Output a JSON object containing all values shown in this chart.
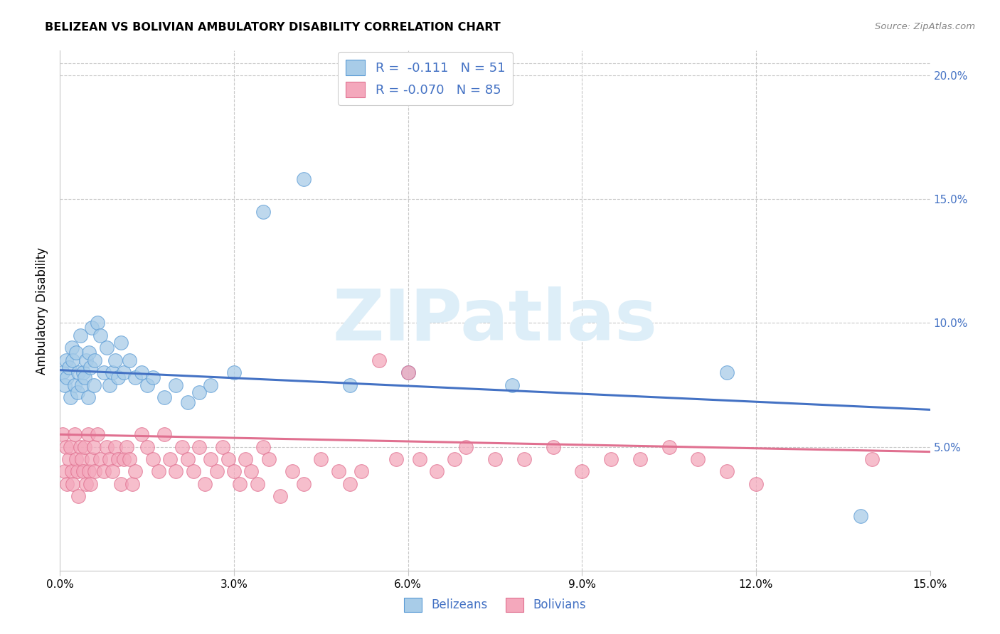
{
  "title": "BELIZEAN VS BOLIVIAN AMBULATORY DISABILITY CORRELATION CHART",
  "source": "Source: ZipAtlas.com",
  "ylabel": "Ambulatory Disability",
  "xlim": [
    0.0,
    15.0
  ],
  "ylim": [
    0.0,
    21.0
  ],
  "yticks": [
    5.0,
    10.0,
    15.0,
    20.0
  ],
  "xticks": [
    0.0,
    3.0,
    6.0,
    9.0,
    12.0,
    15.0
  ],
  "belizean_color": "#a8cce8",
  "bolivian_color": "#f4a8bc",
  "belizean_edge_color": "#5b9bd5",
  "bolivian_edge_color": "#e07090",
  "belizean_line_color": "#4472c4",
  "bolivian_line_color": "#e07090",
  "legend_text_color": "#4472c4",
  "watermark_color": "#ddeef8",
  "watermark": "ZIPatlas",
  "belizean_R": "-0.111",
  "belizean_N": "51",
  "bolivian_R": "-0.070",
  "bolivian_N": "85",
  "belizean_x": [
    0.05,
    0.08,
    0.1,
    0.12,
    0.15,
    0.18,
    0.2,
    0.22,
    0.25,
    0.28,
    0.3,
    0.32,
    0.35,
    0.38,
    0.4,
    0.42,
    0.45,
    0.48,
    0.5,
    0.52,
    0.55,
    0.58,
    0.6,
    0.65,
    0.7,
    0.75,
    0.8,
    0.85,
    0.9,
    0.95,
    1.0,
    1.05,
    1.1,
    1.2,
    1.3,
    1.4,
    1.5,
    1.6,
    1.8,
    2.0,
    2.2,
    2.4,
    2.6,
    3.0,
    3.5,
    4.2,
    5.0,
    6.0,
    7.8,
    11.5,
    13.8
  ],
  "belizean_y": [
    8.0,
    7.5,
    8.5,
    7.8,
    8.2,
    7.0,
    9.0,
    8.5,
    7.5,
    8.8,
    7.2,
    8.0,
    9.5,
    7.5,
    8.0,
    7.8,
    8.5,
    7.0,
    8.8,
    8.2,
    9.8,
    7.5,
    8.5,
    10.0,
    9.5,
    8.0,
    9.0,
    7.5,
    8.0,
    8.5,
    7.8,
    9.2,
    8.0,
    8.5,
    7.8,
    8.0,
    7.5,
    7.8,
    7.0,
    7.5,
    6.8,
    7.2,
    7.5,
    8.0,
    14.5,
    15.8,
    7.5,
    8.0,
    7.5,
    8.0,
    2.2
  ],
  "bolivian_x": [
    0.05,
    0.08,
    0.1,
    0.12,
    0.15,
    0.18,
    0.2,
    0.22,
    0.25,
    0.28,
    0.3,
    0.32,
    0.35,
    0.38,
    0.4,
    0.42,
    0.45,
    0.48,
    0.5,
    0.52,
    0.55,
    0.58,
    0.6,
    0.65,
    0.7,
    0.75,
    0.8,
    0.85,
    0.9,
    0.95,
    1.0,
    1.05,
    1.1,
    1.15,
    1.2,
    1.25,
    1.3,
    1.4,
    1.5,
    1.6,
    1.7,
    1.8,
    1.9,
    2.0,
    2.1,
    2.2,
    2.3,
    2.4,
    2.5,
    2.6,
    2.7,
    2.8,
    2.9,
    3.0,
    3.1,
    3.2,
    3.3,
    3.4,
    3.5,
    3.6,
    3.8,
    4.0,
    4.2,
    4.5,
    4.8,
    5.0,
    5.2,
    5.5,
    5.8,
    6.0,
    6.2,
    6.5,
    6.8,
    7.0,
    7.5,
    8.0,
    8.5,
    9.0,
    9.5,
    10.0,
    10.5,
    11.0,
    11.5,
    12.0,
    14.0
  ],
  "bolivian_y": [
    5.5,
    4.0,
    5.0,
    3.5,
    4.5,
    5.0,
    4.0,
    3.5,
    5.5,
    4.5,
    4.0,
    3.0,
    5.0,
    4.5,
    4.0,
    5.0,
    3.5,
    5.5,
    4.0,
    3.5,
    4.5,
    5.0,
    4.0,
    5.5,
    4.5,
    4.0,
    5.0,
    4.5,
    4.0,
    5.0,
    4.5,
    3.5,
    4.5,
    5.0,
    4.5,
    3.5,
    4.0,
    5.5,
    5.0,
    4.5,
    4.0,
    5.5,
    4.5,
    4.0,
    5.0,
    4.5,
    4.0,
    5.0,
    3.5,
    4.5,
    4.0,
    5.0,
    4.5,
    4.0,
    3.5,
    4.5,
    4.0,
    3.5,
    5.0,
    4.5,
    3.0,
    4.0,
    3.5,
    4.5,
    4.0,
    3.5,
    4.0,
    8.5,
    4.5,
    8.0,
    4.5,
    4.0,
    4.5,
    5.0,
    4.5,
    4.5,
    5.0,
    4.0,
    4.5,
    4.5,
    5.0,
    4.5,
    4.0,
    3.5,
    4.5
  ],
  "grid_color": "#c8c8c8",
  "spine_color": "#c8c8c8"
}
